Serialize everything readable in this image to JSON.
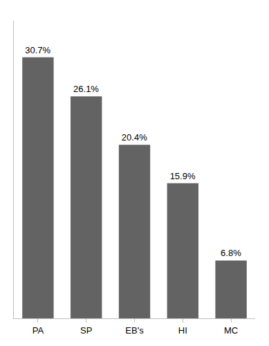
{
  "chart_data": {
    "type": "bar",
    "categories": [
      "PA",
      "SP",
      "EB's",
      "HI",
      "MC"
    ],
    "values": [
      30.7,
      26.1,
      20.4,
      15.9,
      6.8
    ],
    "value_labels": [
      "30.7%",
      "26.1%",
      "20.4%",
      "15.9%",
      "6.8%"
    ],
    "color": "#636363",
    "ylim": [
      0,
      35
    ],
    "data_labels": true,
    "tick_labels": "x",
    "grid": false
  }
}
